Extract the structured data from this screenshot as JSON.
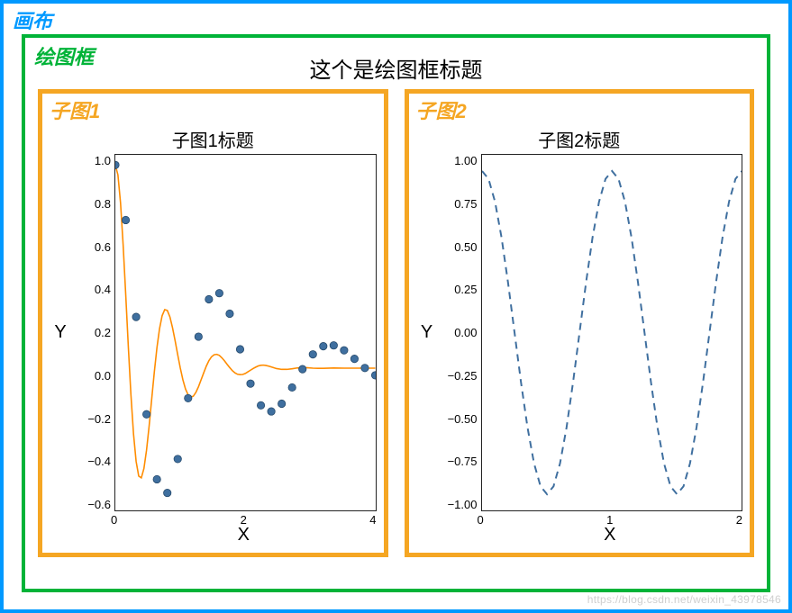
{
  "canvas": {
    "label": "画布",
    "label_color": "#0099ff",
    "border_color": "#0099ff",
    "border_width": 4
  },
  "plot_frame": {
    "label": "绘图框",
    "label_color": "#00b338",
    "border_color": "#00b338",
    "border_width": 4,
    "title": "这个是绘图框标题",
    "title_color": "#000000",
    "title_fontsize": 24
  },
  "subplot1": {
    "frame_label": "子图1",
    "frame_label_color": "#f5a623",
    "border_color": "#f5a623",
    "border_width": 5,
    "title": "子图1标题",
    "title_fontsize": 20,
    "type": "line+scatter",
    "xlabel": "X",
    "ylabel": "Y",
    "xlim": [
      0,
      5
    ],
    "ylim": [
      -0.7,
      1.05
    ],
    "xticks": [
      0,
      2,
      4
    ],
    "yticks": [
      1.0,
      0.8,
      0.6,
      0.4,
      0.2,
      0.0,
      -0.2,
      -0.4,
      -0.6
    ],
    "ytick_labels": [
      "1.0",
      "0.8",
      "0.6",
      "0.4",
      "0.2",
      "0.0",
      "−0.2",
      "−0.4",
      "−0.6"
    ],
    "line_color": "#ff8c00",
    "line_width": 1.6,
    "marker_color": "#3f6f9f",
    "marker_border": "#274b6d",
    "marker_radius": 4.2,
    "background_color": "#ffffff",
    "axis_color": "#222222",
    "line_points": [
      [
        0.0,
        1.0
      ],
      [
        0.05,
        0.951
      ],
      [
        0.1,
        0.814
      ],
      [
        0.15,
        0.608
      ],
      [
        0.2,
        0.362
      ],
      [
        0.25,
        0.105
      ],
      [
        0.3,
        -0.131
      ],
      [
        0.35,
        -0.324
      ],
      [
        0.4,
        -0.459
      ],
      [
        0.45,
        -0.531
      ],
      [
        0.5,
        -0.54
      ],
      [
        0.55,
        -0.494
      ],
      [
        0.6,
        -0.404
      ],
      [
        0.65,
        -0.285
      ],
      [
        0.7,
        -0.151
      ],
      [
        0.75,
        -0.019
      ],
      [
        0.8,
        0.1
      ],
      [
        0.85,
        0.194
      ],
      [
        0.9,
        0.258
      ],
      [
        0.95,
        0.288
      ],
      [
        1.0,
        0.284
      ],
      [
        1.05,
        0.252
      ],
      [
        1.1,
        0.199
      ],
      [
        1.15,
        0.135
      ],
      [
        1.2,
        0.066
      ],
      [
        1.25,
        0.0
      ],
      [
        1.3,
        -0.058
      ],
      [
        1.35,
        -0.103
      ],
      [
        1.4,
        -0.131
      ],
      [
        1.45,
        -0.143
      ],
      [
        1.5,
        -0.138
      ],
      [
        1.55,
        -0.119
      ],
      [
        1.6,
        -0.091
      ],
      [
        1.65,
        -0.057
      ],
      [
        1.7,
        -0.023
      ],
      [
        1.75,
        0.01
      ],
      [
        1.8,
        0.037
      ],
      [
        1.85,
        0.056
      ],
      [
        1.9,
        0.066
      ],
      [
        1.95,
        0.068
      ],
      [
        2.0,
        0.063
      ],
      [
        2.05,
        0.051
      ],
      [
        2.1,
        0.036
      ],
      [
        2.15,
        0.019
      ],
      [
        2.2,
        0.003
      ],
      [
        2.25,
        -0.012
      ],
      [
        2.3,
        -0.023
      ],
      [
        2.35,
        -0.03
      ],
      [
        2.4,
        -0.032
      ],
      [
        2.45,
        -0.031
      ],
      [
        2.5,
        -0.026
      ],
      [
        2.55,
        -0.018
      ],
      [
        2.6,
        -0.01
      ],
      [
        2.65,
        -0.002
      ],
      [
        2.7,
        0.005
      ],
      [
        2.75,
        0.011
      ],
      [
        2.8,
        0.014
      ],
      [
        2.85,
        0.015
      ],
      [
        2.9,
        0.013
      ],
      [
        2.95,
        0.01
      ],
      [
        3.0,
        0.006
      ],
      [
        3.1,
        -0.002
      ],
      [
        3.2,
        -0.006
      ],
      [
        3.3,
        -0.006
      ],
      [
        3.4,
        -0.003
      ],
      [
        3.5,
        0.001
      ],
      [
        3.6,
        0.003
      ],
      [
        3.7,
        0.002
      ],
      [
        3.8,
        0.0
      ],
      [
        3.9,
        -0.001
      ],
      [
        4.0,
        -0.001
      ],
      [
        4.2,
        0.001
      ],
      [
        4.4,
        0.0
      ],
      [
        4.6,
        0.0
      ],
      [
        4.8,
        0.0
      ],
      [
        5.0,
        0.0
      ]
    ],
    "marker_points": [
      [
        0.0,
        1.0
      ],
      [
        0.2,
        0.729
      ],
      [
        0.4,
        0.252
      ],
      [
        0.6,
        -0.227
      ],
      [
        0.8,
        -0.547
      ],
      [
        1.0,
        -0.614
      ],
      [
        1.2,
        -0.447
      ],
      [
        1.4,
        -0.148
      ],
      [
        1.6,
        0.155
      ],
      [
        1.8,
        0.339
      ],
      [
        2.0,
        0.369
      ],
      [
        2.2,
        0.268
      ],
      [
        2.4,
        0.093
      ],
      [
        2.6,
        -0.076
      ],
      [
        2.8,
        -0.183
      ],
      [
        3.0,
        -0.213
      ],
      [
        3.2,
        -0.175
      ],
      [
        3.4,
        -0.095
      ],
      [
        3.6,
        -0.005
      ],
      [
        3.8,
        0.068
      ],
      [
        4.0,
        0.108
      ],
      [
        4.2,
        0.112
      ],
      [
        4.4,
        0.088
      ],
      [
        4.6,
        0.046
      ],
      [
        4.8,
        0.001
      ],
      [
        5.0,
        -0.035
      ]
    ]
  },
  "subplot2": {
    "frame_label": "子图2",
    "frame_label_color": "#f5a623",
    "border_color": "#f5a623",
    "border_width": 5,
    "title": "子图2标题",
    "title_fontsize": 20,
    "type": "line",
    "xlabel": "X",
    "ylabel": "Y",
    "xlim": [
      0,
      2
    ],
    "ylim": [
      -1.1,
      1.1
    ],
    "xticks": [
      0,
      1,
      2
    ],
    "yticks": [
      1.0,
      0.75,
      0.5,
      0.25,
      0.0,
      -0.25,
      -0.5,
      -0.75,
      -1.0
    ],
    "ytick_labels": [
      "1.00",
      "0.75",
      "0.50",
      "0.25",
      "0.00",
      "−0.25",
      "−0.50",
      "−0.75",
      "−1.00"
    ],
    "line_color": "#3f6f9f",
    "line_width": 2.0,
    "line_dash": "8,6",
    "background_color": "#ffffff",
    "axis_color": "#222222",
    "line_points": [
      [
        0.0,
        1.0
      ],
      [
        0.05,
        0.951
      ],
      [
        0.1,
        0.809
      ],
      [
        0.15,
        0.588
      ],
      [
        0.2,
        0.309
      ],
      [
        0.25,
        0.0
      ],
      [
        0.3,
        -0.309
      ],
      [
        0.35,
        -0.588
      ],
      [
        0.4,
        -0.809
      ],
      [
        0.45,
        -0.951
      ],
      [
        0.5,
        -1.0
      ],
      [
        0.55,
        -0.951
      ],
      [
        0.6,
        -0.809
      ],
      [
        0.65,
        -0.588
      ],
      [
        0.7,
        -0.309
      ],
      [
        0.75,
        0.0
      ],
      [
        0.8,
        0.309
      ],
      [
        0.85,
        0.588
      ],
      [
        0.9,
        0.809
      ],
      [
        0.95,
        0.951
      ],
      [
        1.0,
        1.0
      ],
      [
        1.05,
        0.951
      ],
      [
        1.1,
        0.809
      ],
      [
        1.15,
        0.588
      ],
      [
        1.2,
        0.309
      ],
      [
        1.25,
        0.0
      ],
      [
        1.3,
        -0.309
      ],
      [
        1.35,
        -0.588
      ],
      [
        1.4,
        -0.809
      ],
      [
        1.45,
        -0.951
      ],
      [
        1.5,
        -1.0
      ],
      [
        1.55,
        -0.951
      ],
      [
        1.6,
        -0.809
      ],
      [
        1.65,
        -0.588
      ],
      [
        1.7,
        -0.309
      ],
      [
        1.75,
        0.0
      ],
      [
        1.8,
        0.309
      ],
      [
        1.85,
        0.588
      ],
      [
        1.9,
        0.809
      ],
      [
        1.95,
        0.951
      ],
      [
        2.0,
        1.0
      ]
    ]
  },
  "watermark": "https://blog.csdn.net/weixin_43978546"
}
